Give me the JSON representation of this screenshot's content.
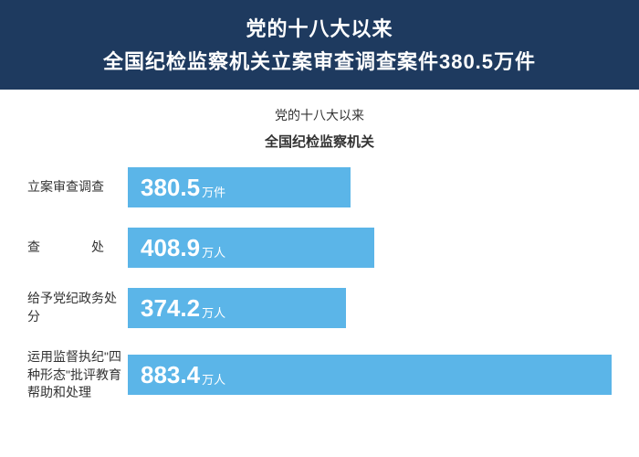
{
  "header": {
    "line1": "党的十八大以来",
    "line2": "全国纪检监察机关立案审查调查案件380.5万件",
    "background_color": "#1e3a5f",
    "text_color": "#ffffff",
    "fontsize": 22
  },
  "subtitle": {
    "line1": "党的十八大以来",
    "line2": "全国纪检监察机关",
    "color": "#333333"
  },
  "chart": {
    "type": "bar",
    "orientation": "horizontal",
    "bar_color": "#5bb5e8",
    "bar_text_color": "#ffffff",
    "label_color": "#333333",
    "label_fontsize": 14,
    "value_fontsize": 26,
    "unit_fontsize": 13,
    "max_value": 900,
    "bars": [
      {
        "label": "立案审查调查",
        "value": "380.5",
        "unit": "万件",
        "num": 380.5,
        "width_pct": 46,
        "justify": false
      },
      {
        "label": "查　　　　处",
        "value": "408.9",
        "unit": "万人",
        "num": 408.9,
        "width_pct": 51,
        "justify": false
      },
      {
        "label": "给予党纪政务处分",
        "value": "374.2",
        "unit": "万人",
        "num": 374.2,
        "width_pct": 45,
        "justify": false
      },
      {
        "label": "运用监督执纪\"四种形态\"批评教育帮助和处理",
        "value": "883.4",
        "unit": "万人",
        "num": 883.4,
        "width_pct": 100,
        "justify": false
      }
    ]
  }
}
